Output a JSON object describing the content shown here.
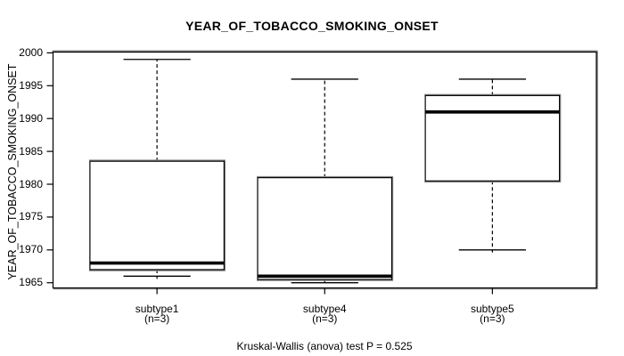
{
  "chart_data": {
    "type": "boxplot",
    "title": "YEAR_OF_TOBACCO_SMOKING_ONSET",
    "ylabel": "YEAR_OF_TOBACCO_SMOKING_ONSET",
    "footnote": "Kruskal-Wallis (anova) test P = 0.525",
    "yticks": [
      1965,
      1970,
      1975,
      1980,
      1985,
      1990,
      1995,
      2000
    ],
    "ylim": [
      1964,
      2001
    ],
    "grid": false,
    "groups": [
      {
        "label": "subtype1",
        "sublabel": "(n=3)",
        "n": 3,
        "whisker_low": 1966,
        "q1": 1967,
        "median": 1968,
        "q3": 1983.5,
        "whisker_high": 1999
      },
      {
        "label": "subtype4",
        "sublabel": "(n=3)",
        "n": 3,
        "whisker_low": 1965,
        "q1": 1965.5,
        "median": 1966,
        "q3": 1981,
        "whisker_high": 1996
      },
      {
        "label": "subtype5",
        "sublabel": "(n=3)",
        "n": 3,
        "whisker_low": 1970,
        "q1": 1980.5,
        "median": 1991,
        "q3": 1993.5,
        "whisker_high": 1996
      }
    ],
    "colors": {
      "line": "#000000",
      "shadow": "#8a8a8a",
      "box_fill": "#ffffff",
      "background": "#ffffff",
      "text": "#000000"
    }
  }
}
